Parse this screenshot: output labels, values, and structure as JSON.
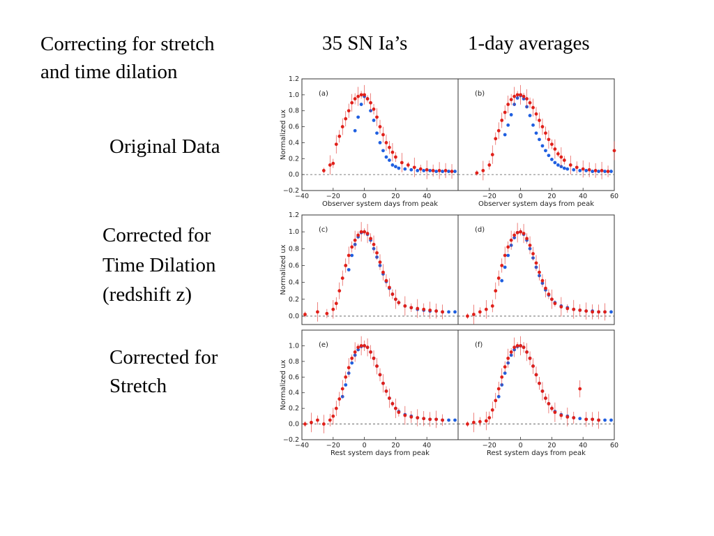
{
  "slide": {
    "title_line1": "Correcting for stretch",
    "title_line2": "and time dilation",
    "header_count": "35 SN Ia’s",
    "header_averages": "1-day averages",
    "row_label_a": "Original Data",
    "row_label_b_line1": "Corrected for",
    "row_label_b_line2": "Time Dilation",
    "row_label_b_line3": "(redshift z)",
    "row_label_c_line1": "Corrected for",
    "row_label_c_line2": "Stretch"
  },
  "colors": {
    "red": "#e0201a",
    "blue": "#1f5fe0",
    "axis": "#333333",
    "zero_line": "#555555"
  },
  "chart_data": [
    {
      "panel": "(a)",
      "type": "scatter",
      "xlabel": "Observer system days from peak",
      "ylabel": "Normalized ux",
      "xlim": [
        -40,
        60
      ],
      "ylim": [
        -0.2,
        1.2
      ],
      "xticks": [
        "−40",
        "−20",
        "0",
        "20",
        "40"
      ],
      "yticks": [
        "−0.2",
        "0.0",
        "0.2",
        "0.4",
        "0.6",
        "0.8",
        "1.0",
        "1.2"
      ],
      "zero_line": true,
      "series": [
        {
          "color": "red",
          "x": [
            -26,
            -22,
            -20,
            -18,
            -16,
            -14,
            -12,
            -10,
            -8,
            -6,
            -4,
            -2,
            0,
            2,
            4,
            6,
            8,
            10,
            12,
            14,
            16,
            18,
            20,
            24,
            28,
            32,
            36,
            40,
            44,
            48,
            52,
            56
          ],
          "y": [
            0.05,
            0.12,
            0.14,
            0.38,
            0.48,
            0.6,
            0.7,
            0.8,
            0.9,
            0.95,
            0.98,
            1.0,
            1.0,
            0.95,
            0.9,
            0.82,
            0.72,
            0.6,
            0.5,
            0.4,
            0.34,
            0.28,
            0.22,
            0.15,
            0.12,
            0.09,
            0.07,
            0.06,
            0.05,
            0.05,
            0.05,
            0.04
          ]
        },
        {
          "color": "blue",
          "x": [
            -6,
            -4,
            -2,
            0,
            2,
            4,
            6,
            8,
            10,
            12,
            14,
            16,
            18,
            20,
            22,
            26,
            30,
            34,
            38,
            42,
            46,
            50,
            54,
            58
          ],
          "y": [
            0.55,
            0.72,
            0.88,
            0.98,
            0.95,
            0.8,
            0.68,
            0.52,
            0.4,
            0.3,
            0.22,
            0.18,
            0.12,
            0.1,
            0.08,
            0.07,
            0.06,
            0.05,
            0.05,
            0.05,
            0.04,
            0.04,
            0.04,
            0.04
          ]
        }
      ]
    },
    {
      "panel": "(b)",
      "type": "scatter",
      "xlabel": "Observer system days from peak",
      "ylabel": "",
      "xlim": [
        -40,
        60
      ],
      "ylim": [
        -0.2,
        1.2
      ],
      "xticks": [
        "−20",
        "0",
        "20",
        "40",
        "60"
      ],
      "yticks": [],
      "zero_line": true,
      "series": [
        {
          "color": "red",
          "x": [
            -28,
            -24,
            -20,
            -18,
            -16,
            -14,
            -12,
            -10,
            -8,
            -6,
            -4,
            -2,
            0,
            2,
            4,
            6,
            8,
            10,
            12,
            14,
            16,
            18,
            20,
            22,
            24,
            26,
            28,
            32,
            36,
            40,
            44,
            48,
            52,
            56,
            60
          ],
          "y": [
            0.02,
            0.05,
            0.12,
            0.25,
            0.45,
            0.55,
            0.68,
            0.78,
            0.88,
            0.94,
            0.98,
            1.0,
            1.0,
            0.98,
            0.95,
            0.9,
            0.84,
            0.76,
            0.68,
            0.6,
            0.52,
            0.44,
            0.38,
            0.32,
            0.26,
            0.22,
            0.18,
            0.12,
            0.09,
            0.07,
            0.06,
            0.05,
            0.05,
            0.04,
            0.3
          ]
        },
        {
          "color": "blue",
          "x": [
            -10,
            -8,
            -6,
            -4,
            -2,
            0,
            2,
            4,
            6,
            8,
            10,
            12,
            14,
            16,
            18,
            20,
            22,
            24,
            26,
            28,
            30,
            34,
            38,
            42,
            46,
            50,
            54,
            58
          ],
          "y": [
            0.5,
            0.62,
            0.75,
            0.88,
            0.96,
            0.99,
            0.95,
            0.85,
            0.74,
            0.62,
            0.52,
            0.44,
            0.36,
            0.3,
            0.24,
            0.19,
            0.15,
            0.12,
            0.1,
            0.08,
            0.07,
            0.06,
            0.05,
            0.05,
            0.04,
            0.04,
            0.04,
            0.04
          ]
        }
      ]
    },
    {
      "panel": "(c)",
      "type": "scatter",
      "xlabel": "",
      "ylabel": "Normalized ux",
      "xlim": [
        -40,
        60
      ],
      "ylim": [
        -0.1,
        1.2
      ],
      "xticks": [],
      "yticks": [
        "0.0",
        "0.2",
        "0.4",
        "0.6",
        "0.8",
        "1.0",
        "1.2"
      ],
      "zero_line": true,
      "series": [
        {
          "color": "red",
          "x": [
            -38,
            -30,
            -24,
            -20,
            -18,
            -16,
            -14,
            -12,
            -10,
            -8,
            -6,
            -4,
            -2,
            0,
            2,
            4,
            6,
            8,
            10,
            12,
            14,
            16,
            18,
            20,
            22,
            26,
            30,
            34,
            38,
            42,
            46,
            50
          ],
          "y": [
            0.02,
            0.05,
            0.03,
            0.08,
            0.15,
            0.3,
            0.45,
            0.6,
            0.72,
            0.82,
            0.9,
            0.96,
            1.0,
            1.0,
            0.98,
            0.92,
            0.85,
            0.75,
            0.64,
            0.52,
            0.42,
            0.34,
            0.26,
            0.2,
            0.16,
            0.12,
            0.1,
            0.09,
            0.08,
            0.07,
            0.06,
            0.05
          ]
        },
        {
          "color": "blue",
          "x": [
            -10,
            -8,
            -6,
            -4,
            -2,
            0,
            2,
            4,
            6,
            8,
            10,
            12,
            14,
            16,
            18,
            20,
            22,
            26,
            30,
            34,
            38,
            42,
            46,
            50,
            54,
            58
          ],
          "y": [
            0.55,
            0.72,
            0.85,
            0.94,
            0.99,
            1.0,
            0.97,
            0.9,
            0.8,
            0.7,
            0.6,
            0.5,
            0.41,
            0.33,
            0.26,
            0.2,
            0.16,
            0.12,
            0.1,
            0.08,
            0.07,
            0.06,
            0.06,
            0.05,
            0.05,
            0.05
          ]
        }
      ]
    },
    {
      "panel": "(d)",
      "type": "scatter",
      "xlabel": "",
      "ylabel": "",
      "xlim": [
        -40,
        60
      ],
      "ylim": [
        -0.1,
        1.2
      ],
      "xticks": [],
      "yticks": [],
      "zero_line": true,
      "series": [
        {
          "color": "red",
          "x": [
            -34,
            -30,
            -26,
            -22,
            -18,
            -16,
            -14,
            -12,
            -10,
            -8,
            -6,
            -4,
            -2,
            0,
            2,
            4,
            6,
            8,
            10,
            12,
            14,
            16,
            18,
            20,
            22,
            26,
            30,
            34,
            38,
            42,
            46,
            50,
            54
          ],
          "y": [
            0.0,
            0.02,
            0.05,
            0.08,
            0.12,
            0.3,
            0.45,
            0.6,
            0.72,
            0.82,
            0.9,
            0.96,
            0.99,
            1.0,
            0.98,
            0.92,
            0.84,
            0.74,
            0.63,
            0.52,
            0.42,
            0.33,
            0.26,
            0.2,
            0.15,
            0.11,
            0.09,
            0.08,
            0.07,
            0.06,
            0.05,
            0.05,
            0.05
          ]
        },
        {
          "color": "blue",
          "x": [
            -12,
            -10,
            -8,
            -6,
            -4,
            -2,
            0,
            2,
            4,
            6,
            8,
            10,
            12,
            14,
            16,
            18,
            20,
            22,
            26,
            30,
            34,
            38,
            42,
            46,
            50,
            54,
            58
          ],
          "y": [
            0.42,
            0.58,
            0.72,
            0.84,
            0.93,
            0.99,
            1.0,
            0.97,
            0.9,
            0.8,
            0.69,
            0.58,
            0.48,
            0.39,
            0.31,
            0.25,
            0.2,
            0.16,
            0.12,
            0.1,
            0.08,
            0.07,
            0.06,
            0.06,
            0.05,
            0.05,
            0.05
          ]
        }
      ]
    },
    {
      "panel": "(e)",
      "type": "scatter",
      "xlabel": "Rest system days from peak",
      "ylabel": "Normalized ux",
      "xlim": [
        -40,
        60
      ],
      "ylim": [
        -0.2,
        1.2
      ],
      "xticks": [
        "−40",
        "−20",
        "0",
        "20",
        "40"
      ],
      "yticks": [
        "−0.2",
        "0.0",
        "0.2",
        "0.4",
        "0.6",
        "0.8",
        "1.0"
      ],
      "zero_line": true,
      "series": [
        {
          "color": "red",
          "x": [
            -38,
            -34,
            -30,
            -26,
            -22,
            -20,
            -18,
            -16,
            -14,
            -12,
            -10,
            -8,
            -6,
            -4,
            -2,
            0,
            2,
            4,
            6,
            8,
            10,
            12,
            14,
            16,
            18,
            20,
            22,
            26,
            30,
            34,
            38,
            42,
            46,
            50
          ],
          "y": [
            0.0,
            0.02,
            0.05,
            0.0,
            0.05,
            0.1,
            0.2,
            0.32,
            0.45,
            0.6,
            0.72,
            0.84,
            0.92,
            0.98,
            1.0,
            1.0,
            0.98,
            0.92,
            0.84,
            0.74,
            0.63,
            0.52,
            0.42,
            0.33,
            0.26,
            0.2,
            0.15,
            0.11,
            0.09,
            0.08,
            0.07,
            0.06,
            0.06,
            0.05
          ]
        },
        {
          "color": "blue",
          "x": [
            -14,
            -12,
            -10,
            -8,
            -6,
            -4,
            -2,
            0,
            2,
            4,
            6,
            8,
            10,
            12,
            14,
            16,
            18,
            20,
            22,
            26,
            30,
            34,
            38,
            42,
            46,
            50,
            54,
            58
          ],
          "y": [
            0.35,
            0.5,
            0.65,
            0.78,
            0.88,
            0.95,
            0.99,
            1.0,
            0.98,
            0.92,
            0.84,
            0.74,
            0.63,
            0.52,
            0.42,
            0.33,
            0.26,
            0.2,
            0.16,
            0.12,
            0.1,
            0.08,
            0.07,
            0.06,
            0.06,
            0.05,
            0.05,
            0.05
          ]
        }
      ]
    },
    {
      "panel": "(f)",
      "type": "scatter",
      "xlabel": "Rest system days from peak",
      "ylabel": "",
      "xlim": [
        -40,
        60
      ],
      "ylim": [
        -0.2,
        1.2
      ],
      "xticks": [
        "−20",
        "0",
        "20",
        "40",
        "60"
      ],
      "yticks": [],
      "zero_line": true,
      "series": [
        {
          "color": "red",
          "x": [
            -34,
            -30,
            -26,
            -22,
            -20,
            -18,
            -16,
            -14,
            -12,
            -10,
            -8,
            -6,
            -4,
            -2,
            0,
            2,
            4,
            6,
            8,
            10,
            12,
            14,
            16,
            18,
            20,
            22,
            26,
            30,
            34,
            38,
            42,
            46,
            50
          ],
          "y": [
            0.0,
            0.02,
            0.03,
            0.04,
            0.08,
            0.18,
            0.3,
            0.45,
            0.6,
            0.73,
            0.84,
            0.92,
            0.98,
            1.0,
            1.0,
            0.98,
            0.92,
            0.84,
            0.74,
            0.63,
            0.52,
            0.42,
            0.33,
            0.26,
            0.2,
            0.15,
            0.11,
            0.09,
            0.08,
            0.45,
            0.06,
            0.06,
            0.05
          ]
        },
        {
          "color": "blue",
          "x": [
            -14,
            -12,
            -10,
            -8,
            -6,
            -4,
            -2,
            0,
            2,
            4,
            6,
            8,
            10,
            12,
            14,
            16,
            18,
            20,
            22,
            26,
            30,
            34,
            38,
            42,
            46,
            50,
            54,
            58
          ],
          "y": [
            0.35,
            0.5,
            0.65,
            0.78,
            0.88,
            0.95,
            0.99,
            1.0,
            0.98,
            0.92,
            0.84,
            0.74,
            0.63,
            0.52,
            0.42,
            0.33,
            0.26,
            0.2,
            0.16,
            0.12,
            0.1,
            0.08,
            0.07,
            0.06,
            0.06,
            0.05,
            0.05,
            0.05
          ]
        }
      ]
    }
  ]
}
